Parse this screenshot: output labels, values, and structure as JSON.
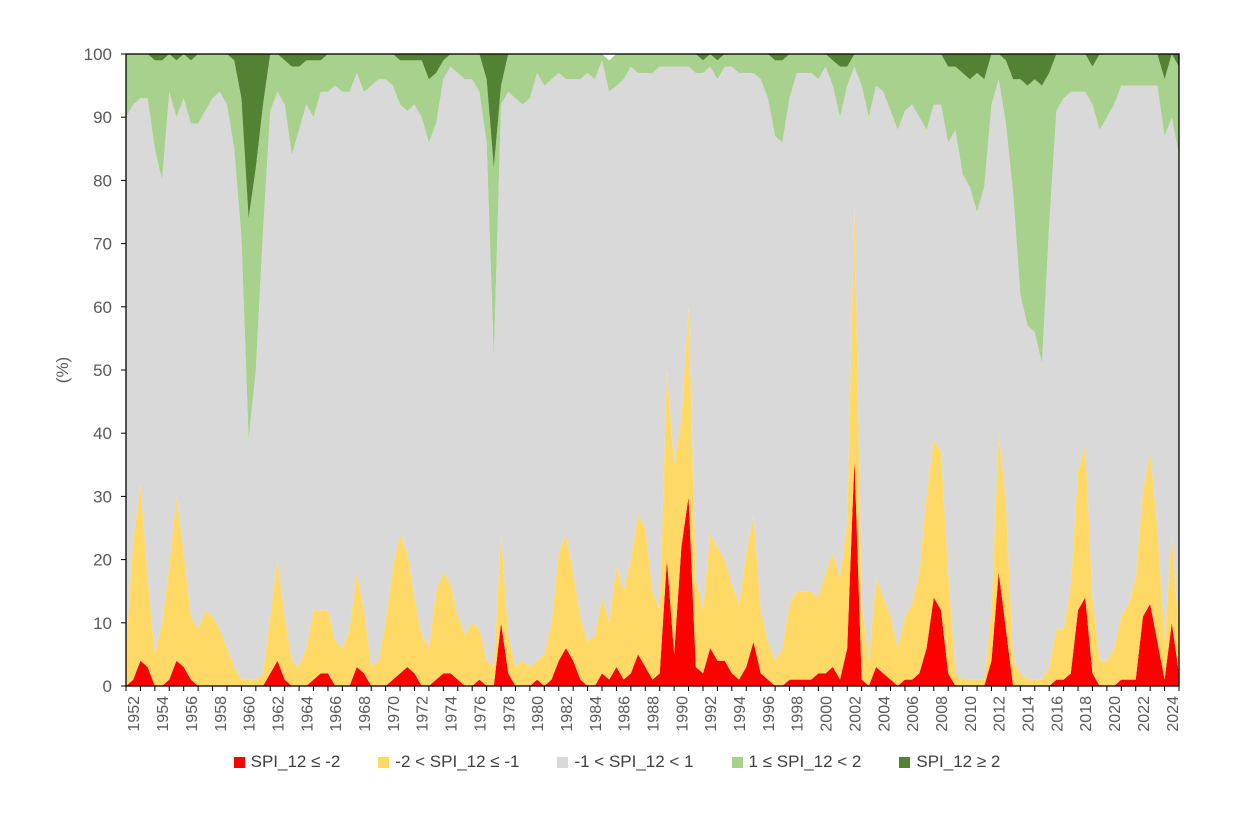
{
  "chart_data": {
    "type": "area",
    "stacked": true,
    "percent_stacked": true,
    "ylabel": "(%)",
    "xlabel": "",
    "ylim": [
      0,
      100
    ],
    "yticks": [
      "0",
      "10",
      "20",
      "30",
      "40",
      "50",
      "60",
      "70",
      "80",
      "90",
      "100"
    ],
    "xlim": [
      1952.0,
      2025.0
    ],
    "xticks": [
      "1952",
      "1954",
      "1956",
      "1958",
      "1960",
      "1962",
      "1964",
      "1966",
      "1968",
      "1970",
      "1972",
      "1974",
      "1976",
      "1978",
      "1980",
      "1982",
      "1984",
      "1986",
      "1988",
      "1990",
      "1992",
      "1994",
      "1996",
      "1998",
      "2000",
      "2002",
      "2004",
      "2006",
      "2008",
      "2010",
      "2012",
      "2014",
      "2016",
      "2018",
      "2020",
      "2022",
      "2024"
    ],
    "legend_position": "bottom",
    "grid": false,
    "x": [
      1952.0,
      1952.5,
      1953.0,
      1953.5,
      1954.0,
      1954.5,
      1955.0,
      1955.5,
      1956.0,
      1956.5,
      1957.0,
      1957.5,
      1958.0,
      1958.5,
      1959.0,
      1959.5,
      1960.0,
      1960.5,
      1961.0,
      1961.5,
      1962.0,
      1962.5,
      1963.0,
      1963.5,
      1964.0,
      1964.5,
      1965.0,
      1965.5,
      1966.0,
      1966.5,
      1967.0,
      1967.5,
      1968.0,
      1968.5,
      1969.0,
      1969.5,
      1970.0,
      1970.5,
      1971.0,
      1971.5,
      1972.0,
      1972.5,
      1973.0,
      1973.5,
      1974.0,
      1974.5,
      1975.0,
      1975.5,
      1976.0,
      1976.5,
      1977.0,
      1977.5,
      1978.0,
      1978.5,
      1979.0,
      1979.5,
      1980.0,
      1980.5,
      1981.0,
      1981.5,
      1982.0,
      1982.5,
      1983.0,
      1983.5,
      1984.0,
      1984.5,
      1985.0,
      1985.5,
      1986.0,
      1986.5,
      1987.0,
      1987.5,
      1988.0,
      1988.5,
      1989.0,
      1989.5,
      1990.0,
      1990.5,
      1991.0,
      1991.5,
      1992.0,
      1992.5,
      1993.0,
      1993.5,
      1994.0,
      1994.5,
      1995.0,
      1995.5,
      1996.0,
      1996.5,
      1997.0,
      1997.5,
      1998.0,
      1998.5,
      1999.0,
      1999.5,
      2000.0,
      2000.5,
      2001.0,
      2001.5,
      2002.0,
      2002.5,
      2003.0,
      2003.5,
      2004.0,
      2004.5,
      2005.0,
      2005.5,
      2006.0,
      2006.5,
      2007.0,
      2007.5,
      2008.0,
      2008.5,
      2009.0,
      2009.5,
      2010.0,
      2010.5,
      2011.0,
      2011.5,
      2012.0,
      2012.5,
      2013.0,
      2013.5,
      2014.0,
      2014.5,
      2015.0,
      2015.5,
      2016.0,
      2016.5,
      2017.0,
      2017.5,
      2018.0,
      2018.5,
      2019.0,
      2019.5,
      2020.0,
      2020.5,
      2021.0,
      2021.5,
      2022.0,
      2022.5,
      2023.0,
      2023.5,
      2024.0,
      2024.5,
      2025.0
    ],
    "series": [
      {
        "name": "SPI_12 ≤ -2",
        "color": "#ff0000",
        "values": [
          0,
          1,
          4,
          3,
          0,
          0,
          1,
          4,
          3,
          1,
          0,
          0,
          0,
          0,
          0,
          0,
          0,
          0,
          0,
          0,
          2,
          4,
          1,
          0,
          0,
          0,
          1,
          2,
          2,
          0,
          0,
          0,
          3,
          2,
          0,
          0,
          0,
          1,
          2,
          3,
          2,
          0,
          0,
          1,
          2,
          2,
          1,
          0,
          0,
          1,
          0,
          0,
          10,
          2,
          0,
          0,
          0,
          1,
          0,
          1,
          4,
          6,
          4,
          1,
          0,
          0,
          2,
          1,
          3,
          1,
          2,
          5,
          3,
          1,
          2,
          20,
          5,
          22,
          30,
          3,
          2,
          6,
          4,
          4,
          2,
          1,
          3,
          7,
          2,
          1,
          0,
          0,
          1,
          1,
          1,
          1,
          2,
          2,
          3,
          1,
          6,
          36,
          1,
          0,
          3,
          2,
          1,
          0,
          1,
          1,
          2,
          6,
          14,
          12,
          2,
          0,
          0,
          0,
          0,
          0,
          4,
          18,
          9,
          0,
          0,
          0,
          0,
          0,
          0,
          1,
          1,
          2,
          12,
          14,
          2,
          0,
          0,
          0,
          1,
          1,
          1,
          11,
          13,
          7,
          1,
          10,
          2
        ]
      },
      {
        "name": "-2 < SPI_12 ≤ -1",
        "color": "#ffd966",
        "values": [
          6,
          22,
          28,
          14,
          5,
          10,
          18,
          26,
          18,
          10,
          9,
          12,
          11,
          9,
          6,
          3,
          1,
          1,
          1,
          2,
          9,
          16,
          10,
          4,
          3,
          6,
          11,
          10,
          10,
          7,
          6,
          9,
          15,
          10,
          3,
          4,
          10,
          18,
          22,
          18,
          12,
          8,
          6,
          14,
          16,
          14,
          10,
          8,
          10,
          8,
          4,
          3,
          14,
          6,
          3,
          4,
          3,
          3,
          5,
          9,
          17,
          18,
          14,
          10,
          7,
          8,
          12,
          9,
          16,
          14,
          18,
          22,
          22,
          14,
          10,
          30,
          30,
          20,
          30,
          14,
          10,
          18,
          18,
          16,
          14,
          12,
          18,
          20,
          10,
          6,
          4,
          6,
          12,
          14,
          14,
          14,
          12,
          16,
          18,
          16,
          20,
          40,
          12,
          4,
          14,
          12,
          10,
          6,
          10,
          12,
          16,
          24,
          25,
          25,
          16,
          2,
          1,
          1,
          1,
          1,
          8,
          22,
          20,
          4,
          2,
          1,
          1,
          1,
          3,
          8,
          8,
          14,
          22,
          24,
          12,
          4,
          4,
          6,
          10,
          12,
          16,
          20,
          24,
          18,
          6,
          14,
          6
        ]
      },
      {
        "name": "-1 < SPI_12 < 1",
        "color": "#d9d9d9",
        "values": [
          84,
          69,
          61,
          76,
          80,
          70,
          75,
          60,
          72,
          78,
          80,
          79,
          82,
          85,
          86,
          82,
          70,
          38,
          49,
          70,
          80,
          74,
          81,
          80,
          85,
          86,
          78,
          82,
          82,
          88,
          88,
          85,
          79,
          82,
          92,
          92,
          86,
          76,
          68,
          70,
          78,
          82,
          80,
          74,
          78,
          82,
          86,
          88,
          86,
          85,
          82,
          49,
          68,
          86,
          90,
          88,
          90,
          93,
          90,
          86,
          76,
          72,
          78,
          85,
          90,
          88,
          85,
          84,
          76,
          81,
          78,
          70,
          72,
          82,
          86,
          48,
          63,
          56,
          38,
          80,
          85,
          74,
          74,
          78,
          82,
          84,
          76,
          70,
          84,
          86,
          83,
          80,
          80,
          82,
          82,
          82,
          82,
          80,
          74,
          73,
          69,
          22,
          82,
          86,
          78,
          80,
          80,
          82,
          80,
          79,
          72,
          58,
          53,
          55,
          68,
          86,
          80,
          78,
          74,
          78,
          80,
          56,
          60,
          74,
          60,
          56,
          55,
          50,
          70,
          82,
          84,
          78,
          60,
          56,
          78,
          84,
          86,
          86,
          84,
          82,
          78,
          64,
          58,
          70,
          80,
          66,
          76
        ]
      },
      {
        "name": "1 ≤ SPI_12 < 2",
        "color": "#a9d18e",
        "values": [
          10,
          8,
          7,
          7,
          14,
          19,
          6,
          9,
          7,
          10,
          11,
          9,
          7,
          6,
          8,
          14,
          22,
          35,
          32,
          20,
          9,
          6,
          7,
          14,
          10,
          7,
          9,
          5,
          6,
          5,
          6,
          6,
          3,
          6,
          5,
          4,
          4,
          5,
          7,
          8,
          7,
          9,
          10,
          8,
          3,
          2,
          3,
          4,
          4,
          6,
          10,
          30,
          3,
          6,
          7,
          8,
          7,
          3,
          5,
          4,
          3,
          4,
          4,
          4,
          3,
          4,
          1,
          5,
          5,
          4,
          2,
          3,
          3,
          3,
          2,
          2,
          2,
          2,
          2,
          3,
          2,
          2,
          3,
          2,
          2,
          3,
          3,
          3,
          4,
          7,
          12,
          13,
          7,
          3,
          3,
          3,
          4,
          2,
          4,
          8,
          3,
          2,
          5,
          10,
          5,
          6,
          9,
          12,
          9,
          8,
          10,
          12,
          8,
          8,
          12,
          10,
          16,
          17,
          22,
          17,
          8,
          4,
          10,
          18,
          34,
          38,
          40,
          44,
          24,
          9,
          7,
          6,
          6,
          6,
          6,
          12,
          10,
          8,
          5,
          5,
          5,
          5,
          5,
          5,
          9,
          10,
          14
        ]
      },
      {
        "name": "SPI_12 ≥ 2",
        "color": "#548235",
        "values": [
          0,
          0,
          0,
          0,
          1,
          1,
          0,
          1,
          0,
          1,
          0,
          0,
          0,
          0,
          0,
          1,
          7,
          26,
          18,
          8,
          0,
          0,
          1,
          2,
          2,
          1,
          1,
          1,
          0,
          0,
          0,
          0,
          0,
          0,
          0,
          0,
          0,
          0,
          1,
          1,
          1,
          1,
          4,
          3,
          1,
          0,
          0,
          0,
          0,
          0,
          4,
          18,
          5,
          0,
          0,
          0,
          0,
          0,
          0,
          0,
          0,
          0,
          0,
          0,
          0,
          0,
          0,
          0,
          0,
          0,
          0,
          0,
          0,
          0,
          0,
          0,
          0,
          0,
          0,
          0,
          1,
          0,
          1,
          0,
          0,
          0,
          0,
          0,
          0,
          0,
          1,
          1,
          0,
          0,
          0,
          0,
          0,
          0,
          1,
          2,
          2,
          0,
          0,
          0,
          0,
          0,
          0,
          0,
          0,
          0,
          0,
          0,
          0,
          0,
          2,
          2,
          3,
          4,
          3,
          4,
          0,
          0,
          1,
          4,
          4,
          5,
          4,
          5,
          3,
          0,
          0,
          0,
          0,
          0,
          2,
          2,
          0,
          0,
          0,
          0,
          0,
          0,
          0,
          0,
          4,
          0,
          2
        ]
      }
    ]
  }
}
